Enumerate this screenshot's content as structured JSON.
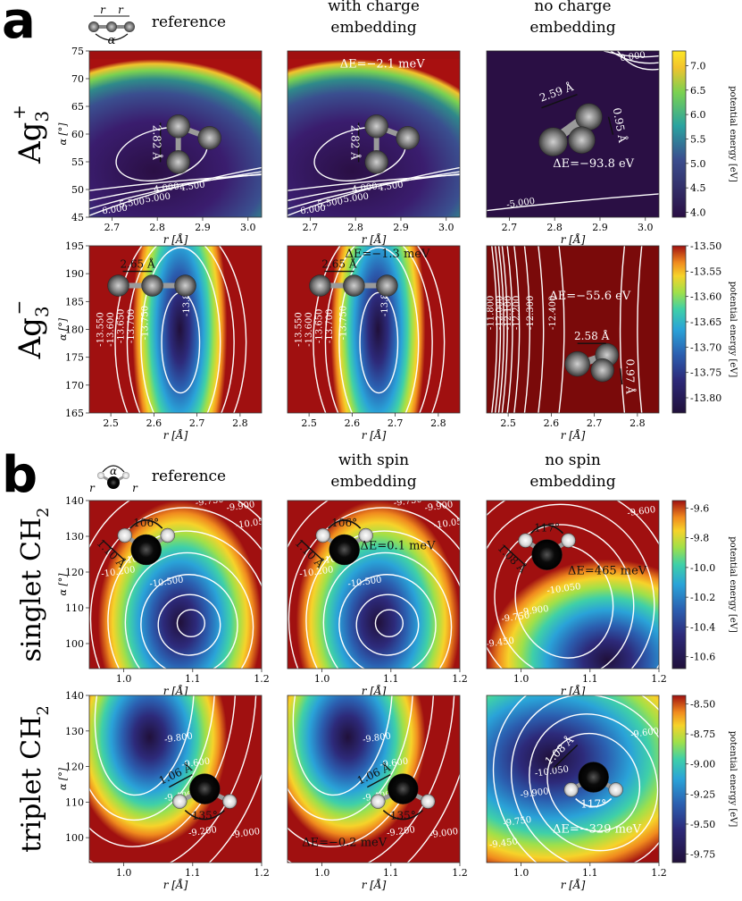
{
  "panel_letters": [
    "a",
    "b"
  ],
  "column_headers": {
    "a": [
      [
        "reference"
      ],
      [
        "with charge",
        "embedding"
      ],
      [
        "no charge",
        "embedding"
      ]
    ],
    "b": [
      [
        "reference"
      ],
      [
        "with spin",
        "embedding"
      ],
      [
        "no spin",
        "embedding"
      ]
    ]
  },
  "row_labels": [
    "Ag",
    "Ag",
    "singlet CH",
    "triplet CH"
  ],
  "row_label_parts": [
    {
      "base": "Ag",
      "sub": "3",
      "sup": "+"
    },
    {
      "base": "Ag",
      "sub": "3",
      "sup": "−"
    },
    {
      "base": "singlet CH",
      "sub": "2",
      "sup": ""
    },
    {
      "base": "triplet CH",
      "sub": "2",
      "sup": ""
    }
  ],
  "schematic_labels": {
    "r": "r",
    "alpha": "α"
  },
  "axis_labels": {
    "y": "α [°]",
    "x": "r [Å]",
    "colorbar": "potential energy [eV]"
  },
  "colors": {
    "viridis_low": "#440154",
    "viridis_high": "#fde725",
    "atom_ag": "#7f7f7f",
    "atom_c": "#0a0a0a",
    "atom_h": "#d8d8d8",
    "contour": "#ffffff"
  },
  "chart_data": [
    {
      "type": "heatmap",
      "title": "Ag3+ reference",
      "xlabel": "r [Å]",
      "ylabel": "α [°]",
      "xlim": [
        2.65,
        3.03
      ],
      "ylim": [
        45,
        75
      ],
      "xticks": [
        2.7,
        2.8,
        2.9,
        3.0
      ],
      "yticks": [
        45,
        50,
        55,
        60,
        65,
        70,
        75
      ],
      "contours": [
        "4.000",
        "4.500",
        "5.000",
        "5.500",
        "6.000"
      ],
      "bond_labels": [
        "2.82 Å"
      ],
      "annotation": ""
    },
    {
      "type": "heatmap",
      "title": "Ag3+ with charge embedding",
      "xlabel": "r [Å]",
      "ylabel": "α [°]",
      "xlim": [
        2.65,
        3.03
      ],
      "ylim": [
        45,
        75
      ],
      "xticks": [
        2.7,
        2.8,
        2.9,
        3.0
      ],
      "yticks": [],
      "contours": [
        "4.000",
        "4.500",
        "5.000",
        "5.500",
        "6.000"
      ],
      "bond_labels": [
        "2.82 Å"
      ],
      "annotation": "ΔE=−2.1 meV"
    },
    {
      "type": "heatmap",
      "title": "Ag3+ no charge embedding",
      "xlabel": "r [Å]",
      "ylabel": "α [°]",
      "xlim": [
        2.65,
        3.03
      ],
      "ylim": [
        45,
        75
      ],
      "xticks": [
        2.7,
        2.8,
        2.9,
        3.0
      ],
      "yticks": [],
      "contours": [
        "-5.000",
        "0.000"
      ],
      "bond_labels": [
        "2.59 Å",
        "0.95 Å"
      ],
      "annotation": "ΔE=−93.8 eV",
      "colorbar": {
        "label": "potential energy [eV]",
        "range": [
          3.9,
          7.3
        ],
        "ticks": [
          "7.0",
          "6.5",
          "6.0",
          "5.5",
          "5.0",
          "4.5",
          "4.0"
        ]
      }
    },
    {
      "type": "heatmap",
      "title": "Ag3- reference",
      "xlabel": "r [Å]",
      "ylabel": "α [°]",
      "xlim": [
        2.45,
        2.85
      ],
      "ylim": [
        165,
        195
      ],
      "xticks": [
        2.5,
        2.6,
        2.7,
        2.8
      ],
      "yticks": [
        165,
        170,
        175,
        180,
        185,
        190,
        195
      ],
      "contours": [
        "-13.550",
        "-13.600",
        "-13.650",
        "-13.700",
        "-13.750",
        "-13.800"
      ],
      "bond_labels": [
        "2.65 Å"
      ],
      "annotation": ""
    },
    {
      "type": "heatmap",
      "title": "Ag3- with charge embedding",
      "xlabel": "r [Å]",
      "ylabel": "α [°]",
      "xlim": [
        2.45,
        2.85
      ],
      "ylim": [
        165,
        195
      ],
      "xticks": [
        2.5,
        2.6,
        2.7,
        2.8
      ],
      "yticks": [],
      "contours": [
        "-13.550",
        "-13.600",
        "-13.650",
        "-13.700",
        "-13.750",
        "-13.800"
      ],
      "bond_labels": [
        "2.65 Å"
      ],
      "annotation": "ΔE=−1.3 meV"
    },
    {
      "type": "heatmap",
      "title": "Ag3- no charge embedding",
      "xlabel": "r [Å]",
      "ylabel": "α [°]",
      "xlim": [
        2.45,
        2.85
      ],
      "ylim": [
        165,
        195
      ],
      "xticks": [
        2.5,
        2.6,
        2.7,
        2.8
      ],
      "yticks": [],
      "contours": [
        "-11.800",
        "-12.000",
        "-12.100",
        "-12.200",
        "-12.300",
        "-12.400"
      ],
      "bond_labels": [
        "2.58 Å",
        "0.97 Å"
      ],
      "annotation": "ΔE=−55.6 eV",
      "colorbar": {
        "label": "potential energy [eV]",
        "range": [
          -13.83,
          -13.5
        ],
        "ticks": [
          "-13.50",
          "-13.55",
          "-13.60",
          "-13.65",
          "-13.70",
          "-13.75",
          "-13.80"
        ]
      }
    },
    {
      "type": "heatmap",
      "title": "singlet CH2 reference",
      "xlabel": "r [Å]",
      "ylabel": "α [°]",
      "xlim": [
        0.95,
        1.2
      ],
      "ylim": [
        93,
        140
      ],
      "xticks": [
        1.0,
        1.1,
        1.2
      ],
      "yticks": [
        100,
        110,
        120,
        130,
        140
      ],
      "contours": [
        "-10.500",
        "-10.350",
        "-10.200",
        "-10.050",
        "-9.900",
        "-9.750"
      ],
      "bond_labels": [
        "106°",
        "1.10 Å"
      ],
      "annotation": ""
    },
    {
      "type": "heatmap",
      "title": "singlet CH2 with spin embedding",
      "xlabel": "r [Å]",
      "ylabel": "α [°]",
      "xlim": [
        0.95,
        1.2
      ],
      "ylim": [
        93,
        140
      ],
      "xticks": [
        1.0,
        1.1,
        1.2
      ],
      "yticks": [],
      "contours": [
        "-10.500",
        "-10.350",
        "-10.200",
        "-10.050",
        "-9.900",
        "-9.750"
      ],
      "bond_labels": [
        "106°",
        "1.10 Å"
      ],
      "annotation": "ΔE=0.1 meV"
    },
    {
      "type": "heatmap",
      "title": "singlet CH2 no spin embedding",
      "xlabel": "r [Å]",
      "ylabel": "α [°]",
      "xlim": [
        0.95,
        1.2
      ],
      "ylim": [
        93,
        140
      ],
      "xticks": [
        1.0,
        1.1,
        1.2
      ],
      "yticks": [],
      "contours": [
        "-10.050",
        "-9.900",
        "-9.750",
        "-9.600",
        "-9.450"
      ],
      "bond_labels": [
        "117°",
        "1.08 Å"
      ],
      "annotation": "ΔE=465 meV",
      "colorbar": {
        "label": "potential energy [eV]",
        "range": [
          -10.68,
          -9.55
        ],
        "ticks": [
          "-9.6",
          "-9.8",
          "-10.0",
          "-10.2",
          "-10.4",
          "-10.6"
        ]
      }
    },
    {
      "type": "heatmap",
      "title": "triplet CH2 reference",
      "xlabel": "r [Å]",
      "ylabel": "α [°]",
      "xlim": [
        0.95,
        1.2
      ],
      "ylim": [
        93,
        140
      ],
      "xticks": [
        1.0,
        1.1,
        1.2
      ],
      "yticks": [
        100,
        110,
        120,
        130,
        140
      ],
      "contours": [
        "-9.800",
        "-9.600",
        "-9.400",
        "-9.200",
        "-9.000"
      ],
      "bond_labels": [
        "1.06 Å",
        "135°"
      ],
      "annotation": ""
    },
    {
      "type": "heatmap",
      "title": "triplet CH2 with spin embedding",
      "xlabel": "r [Å]",
      "ylabel": "α [°]",
      "xlim": [
        0.95,
        1.2
      ],
      "ylim": [
        93,
        140
      ],
      "xticks": [
        1.0,
        1.1,
        1.2
      ],
      "yticks": [],
      "contours": [
        "-9.800",
        "-9.600",
        "-9.400",
        "-9.200",
        "-9.000"
      ],
      "bond_labels": [
        "1.06 Å",
        "135°"
      ],
      "annotation": "ΔE=−0.2 meV"
    },
    {
      "type": "heatmap",
      "title": "triplet CH2 no spin embedding",
      "xlabel": "r [Å]",
      "ylabel": "α [°]",
      "xlim": [
        0.95,
        1.2
      ],
      "ylim": [
        93,
        140
      ],
      "xticks": [
        1.0,
        1.1,
        1.2
      ],
      "yticks": [],
      "contours": [
        "-10.050",
        "-9.900",
        "-9.750",
        "-9.600",
        "-9.450"
      ],
      "bond_labels": [
        "1.08 Å",
        "117°"
      ],
      "annotation": "ΔE=−329 meV",
      "colorbar": {
        "label": "potential energy [eV]",
        "range": [
          -9.82,
          -8.43
        ],
        "ticks": [
          "-8.50",
          "-8.75",
          "-9.00",
          "-9.25",
          "-9.50",
          "-9.75"
        ]
      }
    }
  ]
}
